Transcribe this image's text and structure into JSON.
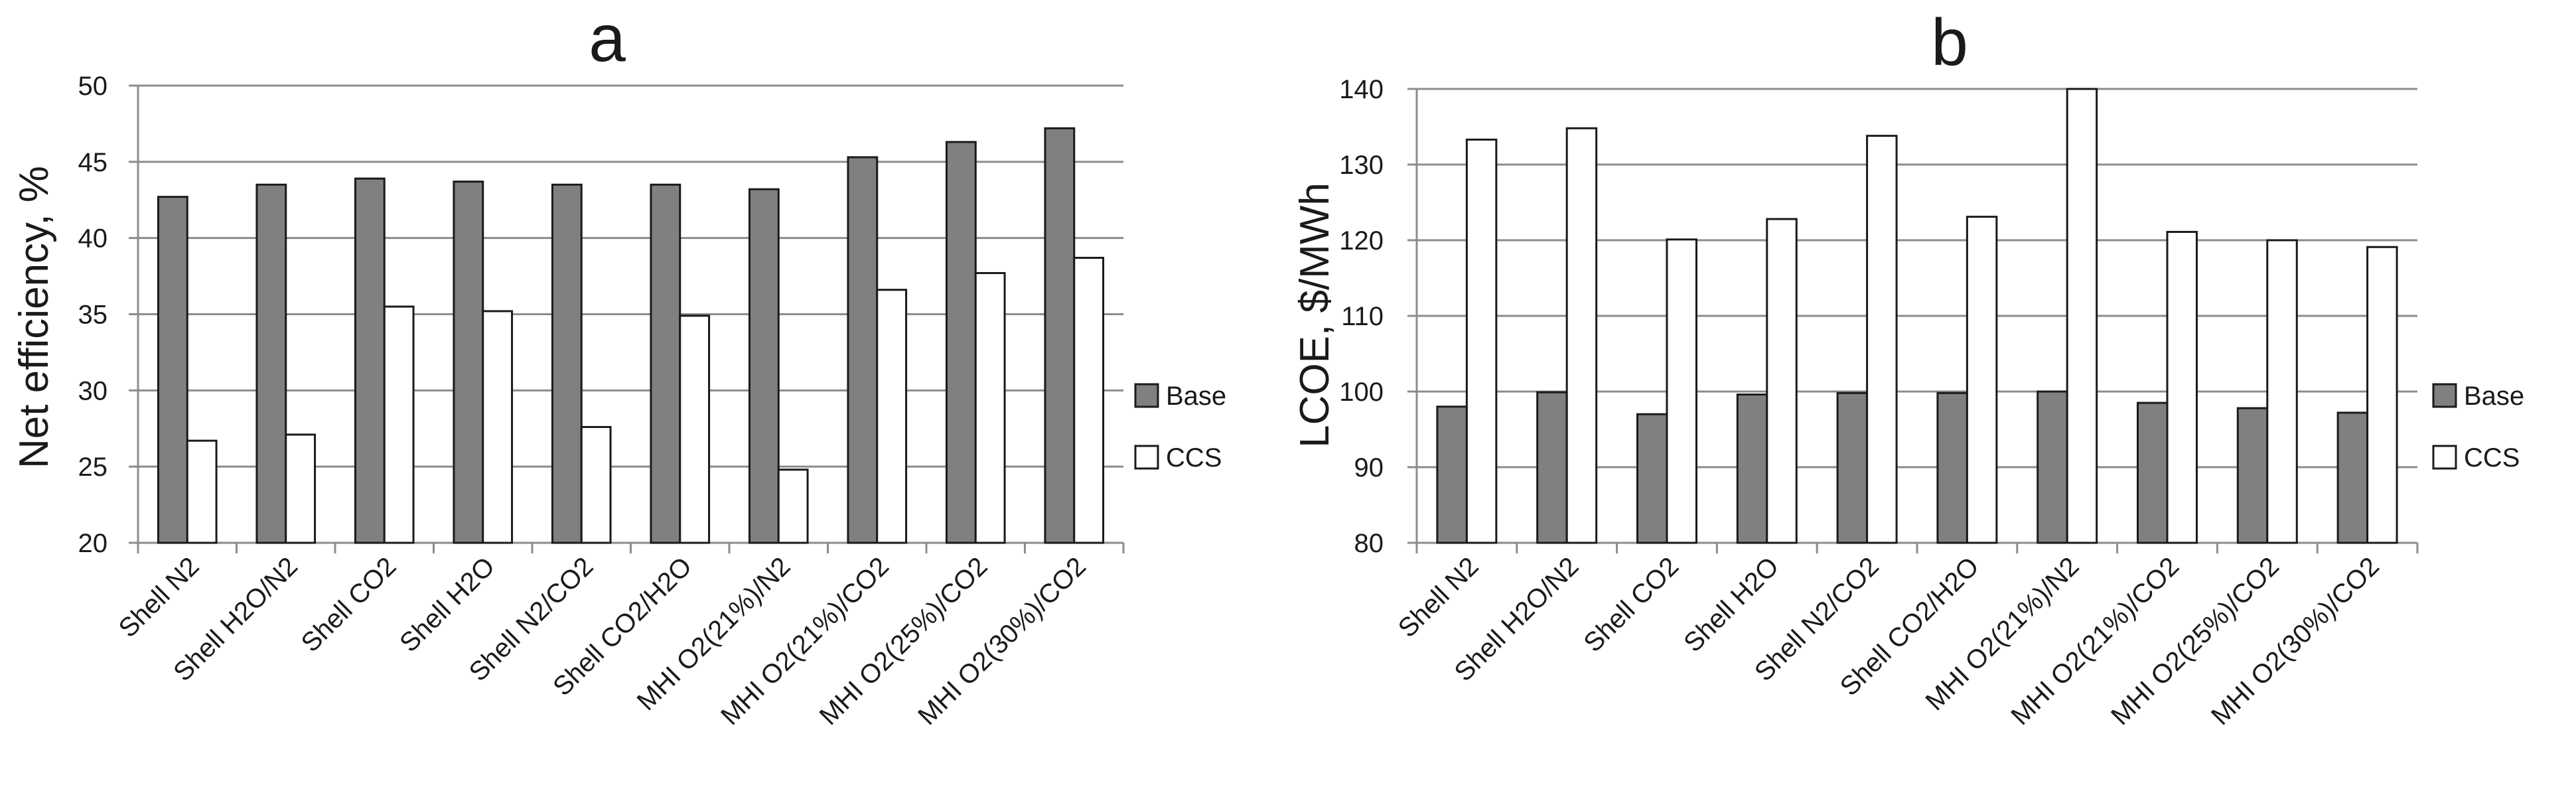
{
  "colors": {
    "base_fill": "#808080",
    "ccs_fill": "#ffffff",
    "bar_stroke": "#1a1a1a",
    "grid": "#8c8c8c",
    "axis": "#8c8c8c",
    "text": "#1a1a1a"
  },
  "chart_data": [
    {
      "type": "bar",
      "title": "a",
      "xlabel": "",
      "ylabel": "Net efficiency, %",
      "ylim": [
        20,
        50
      ],
      "ytick_step": 5,
      "yticks": [
        "20",
        "25",
        "30",
        "35",
        "40",
        "45",
        "50"
      ],
      "grid": true,
      "legend_position": "right",
      "categories": [
        "Shell N2",
        "Shell H2O/N2",
        "Shell CO2",
        "Shell H2O",
        "Shell N2/CO2",
        "Shell CO2/H2O",
        "MHI O2(21%)/N2",
        "MHI O2(21%)/CO2",
        "MHI O2(25%)/CO2",
        "MHI O2(30%)/CO2"
      ],
      "series": [
        {
          "name": "Base",
          "values": [
            42.7,
            43.5,
            43.9,
            43.7,
            43.5,
            43.5,
            43.2,
            45.3,
            46.3,
            47.2
          ]
        },
        {
          "name": "CCS",
          "values": [
            26.7,
            27.1,
            35.5,
            35.2,
            27.6,
            34.9,
            24.8,
            36.6,
            37.7,
            38.7
          ]
        }
      ]
    },
    {
      "type": "bar",
      "title": "b",
      "xlabel": "",
      "ylabel": "LCOE, $/MWh",
      "ylim": [
        80,
        140
      ],
      "ytick_step": 10,
      "yticks": [
        "80",
        "90",
        "100",
        "110",
        "120",
        "130",
        "140"
      ],
      "grid": true,
      "legend_position": "right",
      "categories": [
        "Shell N2",
        "Shell H2O/N2",
        "Shell CO2",
        "Shell H2O",
        "Shell N2/CO2",
        "Shell CO2/H2O",
        "MHI O2(21%)/N2",
        "MHI O2(21%)/CO2",
        "MHI O2(25%)/CO2",
        "MHI O2(30%)/CO2"
      ],
      "series": [
        {
          "name": "Base",
          "values": [
            98,
            99.9,
            97,
            99.6,
            99.8,
            99.8,
            100,
            98.5,
            97.8,
            97.2
          ]
        },
        {
          "name": "CCS",
          "values": [
            133.3,
            134.8,
            120.1,
            122.8,
            133.8,
            123.1,
            140,
            121.1,
            120,
            119.1
          ]
        }
      ]
    }
  ]
}
